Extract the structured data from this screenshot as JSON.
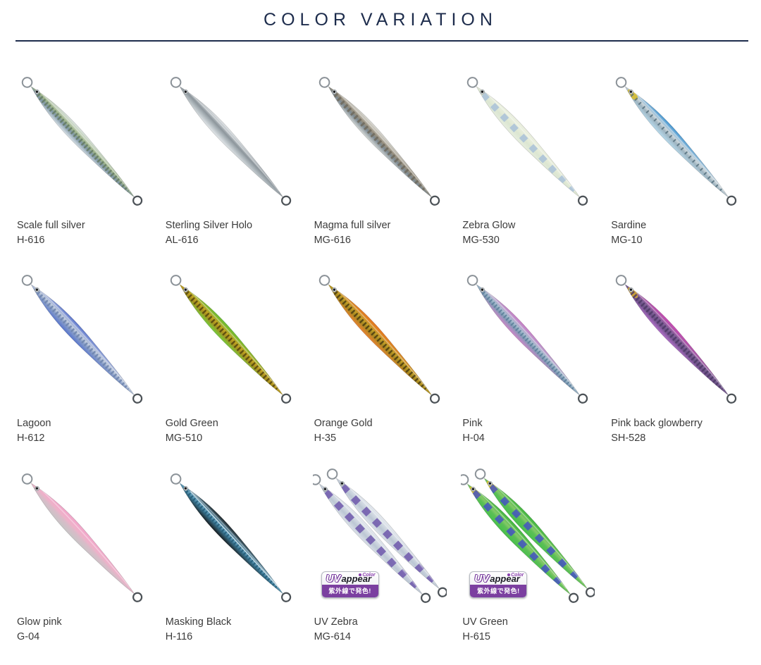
{
  "page": {
    "title": "COLOR VARIATION",
    "accent_color": "#1d2c4c",
    "background_color": "#ffffff"
  },
  "uv_badge": {
    "uv": "UV",
    "appear": "appear",
    "color_label": "Color",
    "caption": "紫外線で発色!",
    "purple": "#7b3fa0"
  },
  "lures": [
    {
      "name": "Scale full silver",
      "code": "H-616",
      "colors": {
        "back": "#eaf0f2",
        "band": "#9db388",
        "band2": "#7e95a6",
        "belly": "#e2eaee",
        "stripe": "#647a64",
        "stripe_dash": "2.5 3",
        "stripe_width": 7
      }
    },
    {
      "name": "Sterling Silver Holo",
      "code": "AL-616",
      "colors": {
        "back": "#f1f4f6",
        "band": "#8d969c",
        "band2": "#aab3b8",
        "belly": "#e9edef"
      }
    },
    {
      "name": "Magma full silver",
      "code": "MG-616",
      "colors": {
        "back": "#e9eae6",
        "band": "#958d7c",
        "band2": "#7d8a92",
        "belly": "#dee1de",
        "stripe": "#6e6a5e",
        "stripe_dash": "3 4",
        "stripe_width": 7
      }
    },
    {
      "name": "Zebra Glow",
      "code": "MG-530",
      "colors": {
        "back": "#edf1e1",
        "band": "#e4ebd8",
        "band2": "#dce6d2",
        "belly": "#e7eee0",
        "stripe": "#a9c1d8",
        "stripe_dash": "9 11",
        "stripe_width": 9
      }
    },
    {
      "name": "Sardine",
      "code": "MG-10",
      "colors": {
        "back": "#2f8ed3",
        "band": "#ccd6db",
        "band2": "#9fb4c0",
        "belly": "#b8ddf0",
        "stripe": "#55707e",
        "stripe_dash": "2 6",
        "stripe_width": 5,
        "head": "#d2bd3f"
      }
    },
    {
      "name": "Lagoon",
      "code": "H-612",
      "colors": {
        "back": "#4a67cb",
        "band": "#c6d0df",
        "band2": "#8ca1c9",
        "belly": "#5270cd",
        "stripe": "#6d84ad",
        "stripe_dash": "2.5 3",
        "stripe_width": 6
      }
    },
    {
      "name": "Gold Green",
      "code": "MG-510",
      "colors": {
        "back": "#57c433",
        "band": "#c3a424",
        "band2": "#a88f1e",
        "belly": "#6ed23e",
        "stripe": "#55470f",
        "stripe_dash": "2.5 3.5",
        "stripe_width": 7
      }
    },
    {
      "name": "Orange Gold",
      "code": "H-35",
      "colors": {
        "back": "#ef6f1e",
        "band": "#c2a02a",
        "band2": "#a5881f",
        "belly": "#f08233",
        "stripe": "#4b3d12",
        "stripe_dash": "2.5 3.5",
        "stripe_width": 7
      }
    },
    {
      "name": "Pink",
      "code": "H-04",
      "colors": {
        "back": "#cf72c6",
        "band": "#a8bfcf",
        "band2": "#7f9cb5",
        "belly": "#d584cb",
        "stripe": "#5b7e99",
        "stripe_dash": "2 3",
        "stripe_width": 6
      }
    },
    {
      "name": "Pink back glowberry",
      "code": "SH-528",
      "colors": {
        "back": "#d846ba",
        "band": "#7e6397",
        "band2": "#6b5086",
        "belly": "#b873d0",
        "stripe": "#4e3a66",
        "stripe_dash": "2.5 3",
        "stripe_width": 7,
        "head": "#c79d3c"
      }
    },
    {
      "name": "Glow pink",
      "code": "G-04",
      "colors": {
        "back": "#f3a5cb",
        "band": "#eeb1c9",
        "band2": "#d8bcc8",
        "belly": "#c6c6c6"
      }
    },
    {
      "name": "Masking Black",
      "code": "H-116",
      "colors": {
        "back": "#151515",
        "band": "#6ca6c2",
        "band2": "#3c7894",
        "belly": "#121212",
        "stripe": "#245a76",
        "stripe_dash": "2 3",
        "stripe_width": 5,
        "topline": "#e6eef2"
      }
    },
    {
      "name": "UV Zebra",
      "code": "MG-614",
      "double": true,
      "uv": true,
      "colors": {
        "back": "#e9edf2",
        "band": "#ccd4de",
        "band2": "#bcc7d4",
        "belly": "#dfe5ec",
        "stripe": "#6e58ab",
        "stripe_dash": "10 12",
        "stripe_width": 10
      }
    },
    {
      "name": "UV Green",
      "code": "H-615",
      "double": true,
      "uv": true,
      "colors": {
        "back": "#35b337",
        "band": "#84c868",
        "band2": "#5bbf55",
        "belly": "#46c04b",
        "stripe": "#4452c2",
        "stripe_dash": "10 14",
        "stripe_width": 9,
        "head": "#d8c42a"
      }
    }
  ]
}
